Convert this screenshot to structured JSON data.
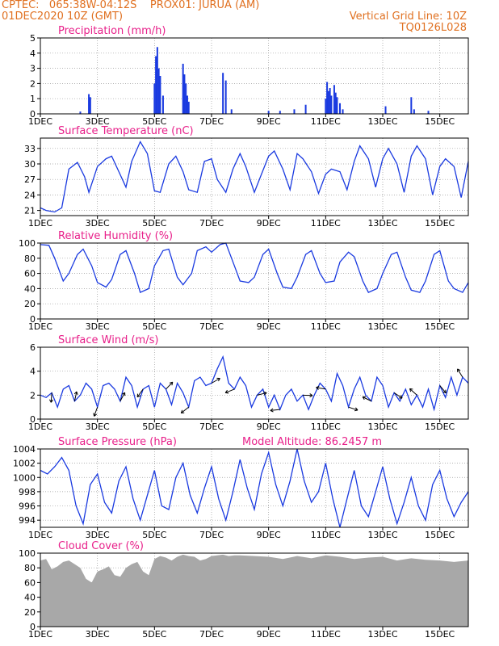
{
  "header": {
    "line1_left": "CPTEC:   065:38W-04:12S    PROX01: JURUA (AM)",
    "line2_left": "01DEC2020 10Z (GMT)",
    "line2_right": "Vertical Grid Line: 10Z",
    "line3_right": "TQ0126L028"
  },
  "colors": {
    "header": "#e07020",
    "title": "#e8208a",
    "series": "#1a3ae0",
    "cloud": "#a8a8a8",
    "wind_arrow": "#000000"
  },
  "x_tick_labels": [
    "1DEC",
    "3DEC",
    "5DEC",
    "7DEC",
    "9DEC",
    "11DEC",
    "13DEC",
    "15DEC"
  ],
  "chart_data": [
    {
      "type": "bar",
      "title": "Precipitation (mm/h)",
      "ylim": [
        0,
        5
      ],
      "yticks": [
        "0",
        "1",
        "2",
        "3",
        "4",
        "5"
      ],
      "grid": "dotted",
      "series": [
        {
          "x": [
            1.4,
            1.7,
            1.75,
            4.0,
            4.05,
            4.1,
            4.15,
            4.2,
            4.3,
            5.0,
            5.05,
            5.1,
            5.15,
            5.2,
            6.4,
            6.5,
            6.7,
            8.0,
            8.4,
            8.9,
            9.3,
            10.0,
            10.05,
            10.1,
            10.15,
            10.2,
            10.3,
            10.35,
            10.4,
            10.5,
            10.6,
            12.1,
            13.0,
            13.1,
            13.6
          ],
          "values": [
            0.15,
            1.3,
            1.1,
            2.0,
            3.8,
            4.4,
            3.0,
            2.5,
            1.2,
            3.3,
            2.6,
            2.0,
            1.2,
            0.8,
            2.7,
            2.2,
            0.3,
            0.2,
            0.2,
            0.3,
            0.6,
            1.0,
            2.1,
            1.5,
            1.7,
            1.2,
            1.9,
            1.4,
            1.1,
            0.7,
            0.3,
            0.5,
            1.1,
            0.3,
            0.2
          ]
        }
      ]
    },
    {
      "type": "line",
      "title": "Surface Temperature (nC)",
      "ylim": [
        20,
        35
      ],
      "yticks": [
        "21",
        "24",
        "27",
        "30",
        "33"
      ],
      "grid": "dotted",
      "series": [
        {
          "x": [
            0,
            0.2,
            0.5,
            0.75,
            1.0,
            1.3,
            1.55,
            1.7,
            2.0,
            2.3,
            2.5,
            2.75,
            3.0,
            3.2,
            3.5,
            3.75,
            4.0,
            4.2,
            4.5,
            4.75,
            5.0,
            5.2,
            5.5,
            5.75,
            6.0,
            6.2,
            6.5,
            6.75,
            7.0,
            7.2,
            7.5,
            7.75,
            8.0,
            8.2,
            8.5,
            8.75,
            9.0,
            9.2,
            9.5,
            9.75,
            10.0,
            10.2,
            10.5,
            10.75,
            11.0,
            11.2,
            11.5,
            11.75,
            12.0,
            12.2,
            12.5,
            12.75,
            13.0,
            13.2,
            13.5,
            13.75,
            14.0,
            14.2,
            14.5,
            14.75,
            15.0
          ],
          "values": [
            21.5,
            21.0,
            20.7,
            21.5,
            29.0,
            30.3,
            27.5,
            24.5,
            29.5,
            31.0,
            31.5,
            28.5,
            25.5,
            30.5,
            34.3,
            32.0,
            24.8,
            24.5,
            30.0,
            31.5,
            28.5,
            25.0,
            24.5,
            30.5,
            31.0,
            27.0,
            24.5,
            29.0,
            32.0,
            29.5,
            24.5,
            28.0,
            31.5,
            32.5,
            29.0,
            25.0,
            32.0,
            31.0,
            28.5,
            24.3,
            28.0,
            29.0,
            28.5,
            25.0,
            30.5,
            33.5,
            31.0,
            25.5,
            31.0,
            33.0,
            30.0,
            24.5,
            31.5,
            33.5,
            31.0,
            24.0,
            29.5,
            31.0,
            29.5,
            23.5,
            30.5
          ]
        }
      ]
    },
    {
      "type": "line",
      "title": "Relative Humidity (%)",
      "ylim": [
        0,
        100
      ],
      "yticks": [
        "0",
        "20",
        "40",
        "60",
        "80",
        "100"
      ],
      "grid": "dotted",
      "series": [
        {
          "x": [
            0,
            0.3,
            0.5,
            0.8,
            1.0,
            1.3,
            1.5,
            1.8,
            2.0,
            2.3,
            2.5,
            2.8,
            3.0,
            3.3,
            3.5,
            3.8,
            4.0,
            4.3,
            4.5,
            4.8,
            5.0,
            5.3,
            5.5,
            5.8,
            6.0,
            6.3,
            6.5,
            6.8,
            7.0,
            7.3,
            7.5,
            7.8,
            8.0,
            8.3,
            8.5,
            8.8,
            9.0,
            9.3,
            9.5,
            9.8,
            10.0,
            10.3,
            10.5,
            10.8,
            11.0,
            11.3,
            11.5,
            11.8,
            12.0,
            12.3,
            12.5,
            12.8,
            13.0,
            13.3,
            13.5,
            13.8,
            14.0,
            14.3,
            14.5,
            14.8,
            15.0
          ],
          "values": [
            98,
            97,
            80,
            50,
            60,
            85,
            92,
            70,
            48,
            42,
            52,
            85,
            90,
            60,
            35,
            40,
            70,
            90,
            92,
            55,
            45,
            60,
            90,
            95,
            88,
            98,
            100,
            70,
            50,
            48,
            55,
            85,
            92,
            60,
            42,
            40,
            55,
            85,
            90,
            60,
            48,
            50,
            75,
            88,
            82,
            50,
            35,
            40,
            60,
            85,
            88,
            55,
            38,
            35,
            50,
            85,
            90,
            50,
            40,
            35,
            48
          ]
        }
      ]
    },
    {
      "type": "line",
      "title": "Surface Wind (m/s)",
      "ylim": [
        0,
        6
      ],
      "yticks": [
        "0",
        "2",
        "4",
        "6"
      ],
      "grid": "dotted",
      "series": [
        {
          "x": [
            0,
            0.2,
            0.4,
            0.6,
            0.8,
            1.0,
            1.2,
            1.4,
            1.6,
            1.8,
            2.0,
            2.2,
            2.4,
            2.6,
            2.8,
            3.0,
            3.2,
            3.4,
            3.6,
            3.8,
            4.0,
            4.2,
            4.4,
            4.6,
            4.8,
            5.0,
            5.2,
            5.4,
            5.6,
            5.8,
            6.0,
            6.2,
            6.4,
            6.6,
            6.8,
            7.0,
            7.2,
            7.4,
            7.6,
            7.8,
            8.0,
            8.2,
            8.4,
            8.6,
            8.8,
            9.0,
            9.2,
            9.4,
            9.6,
            9.8,
            10.0,
            10.2,
            10.4,
            10.6,
            10.8,
            11.0,
            11.2,
            11.4,
            11.6,
            11.8,
            12.0,
            12.2,
            12.4,
            12.6,
            12.8,
            13.0,
            13.2,
            13.4,
            13.6,
            13.8,
            14.0,
            14.2,
            14.4,
            14.6,
            14.8,
            15.0
          ],
          "values": [
            2.0,
            1.8,
            2.2,
            1.0,
            2.5,
            2.8,
            1.5,
            2.0,
            3.0,
            2.5,
            1.0,
            2.8,
            3.0,
            2.5,
            1.5,
            3.5,
            2.8,
            1.0,
            2.5,
            2.8,
            1.0,
            3.0,
            2.5,
            1.2,
            3.0,
            2.2,
            1.0,
            3.2,
            3.5,
            2.8,
            3.0,
            4.2,
            5.2,
            3.0,
            2.5,
            3.5,
            2.8,
            1.0,
            2.0,
            2.5,
            1.0,
            2.0,
            0.8,
            2.0,
            2.5,
            1.5,
            2.0,
            0.8,
            2.0,
            3.0,
            2.5,
            1.5,
            3.8,
            2.8,
            1.0,
            2.5,
            3.5,
            2.0,
            1.5,
            3.5,
            2.8,
            1.0,
            2.2,
            1.5,
            2.5,
            1.2,
            2.0,
            1.0,
            2.5,
            0.8,
            2.8,
            1.8,
            3.5,
            2.0,
            3.5,
            3.0
          ]
        }
      ]
    },
    {
      "type": "line",
      "title": "Surface Pressure (hPa)",
      "annotation": "Model Altitude: 86.2457 m",
      "ylim": [
        993,
        1004
      ],
      "yticks": [
        "994",
        "996",
        "998",
        "1000",
        "1002",
        "1004"
      ],
      "grid": "dotted",
      "series": [
        {
          "x": [
            0,
            0.25,
            0.5,
            0.75,
            1.0,
            1.25,
            1.5,
            1.75,
            2.0,
            2.25,
            2.5,
            2.75,
            3.0,
            3.25,
            3.5,
            3.75,
            4.0,
            4.25,
            4.5,
            4.75,
            5.0,
            5.25,
            5.5,
            5.75,
            6.0,
            6.25,
            6.5,
            6.75,
            7.0,
            7.25,
            7.5,
            7.75,
            8.0,
            8.25,
            8.5,
            8.75,
            9.0,
            9.25,
            9.5,
            9.75,
            10.0,
            10.25,
            10.5,
            10.75,
            11.0,
            11.25,
            11.5,
            11.75,
            12.0,
            12.25,
            12.5,
            12.75,
            13.0,
            13.25,
            13.5,
            13.75,
            14.0,
            14.25,
            14.5,
            14.75,
            15.0
          ],
          "values": [
            1001,
            1000.5,
            1001.5,
            1002.8,
            1001,
            996,
            993.5,
            999,
            1000.5,
            996.5,
            995,
            999.5,
            1001.5,
            997,
            994,
            997.5,
            1001,
            996,
            995.5,
            1000,
            1002,
            997.5,
            995,
            998.5,
            1001.5,
            997,
            994,
            998,
            1002.5,
            998.5,
            995.5,
            1000.5,
            1003.5,
            999,
            996,
            999.5,
            1004,
            999.5,
            996.5,
            998,
            1002,
            997,
            993,
            997,
            1001,
            996,
            994.5,
            998,
            1001.5,
            997,
            993.5,
            996.5,
            1000,
            996,
            994,
            999,
            1001,
            997,
            994.5,
            996.5,
            998
          ]
        }
      ]
    },
    {
      "type": "area",
      "title": "Cloud Cover (%)",
      "ylim": [
        0,
        100
      ],
      "yticks": [
        "0",
        "20",
        "40",
        "60",
        "80",
        "100"
      ],
      "grid": "dotted",
      "series": [
        {
          "x": [
            0,
            0.2,
            0.4,
            0.6,
            0.8,
            1.0,
            1.2,
            1.4,
            1.6,
            1.8,
            2.0,
            2.2,
            2.4,
            2.6,
            2.8,
            3.0,
            3.2,
            3.4,
            3.6,
            3.8,
            4.0,
            4.2,
            4.4,
            4.6,
            4.8,
            5.0,
            5.2,
            5.4,
            5.6,
            5.8,
            6.0,
            6.2,
            6.4,
            6.6,
            6.8,
            7.0,
            7.5,
            8.0,
            8.5,
            9.0,
            9.5,
            10.0,
            10.5,
            11.0,
            11.5,
            12.0,
            12.5,
            13.0,
            13.5,
            14.0,
            14.5,
            15.0
          ],
          "values": [
            90,
            92,
            78,
            82,
            88,
            90,
            85,
            80,
            65,
            60,
            75,
            78,
            82,
            70,
            68,
            80,
            85,
            88,
            75,
            70,
            92,
            96,
            94,
            90,
            95,
            98,
            96,
            95,
            90,
            92,
            96,
            97,
            98,
            96,
            97,
            97,
            96,
            95,
            92,
            96,
            93,
            97,
            95,
            92,
            94,
            95,
            90,
            93,
            91,
            90,
            88,
            90
          ]
        }
      ]
    }
  ]
}
